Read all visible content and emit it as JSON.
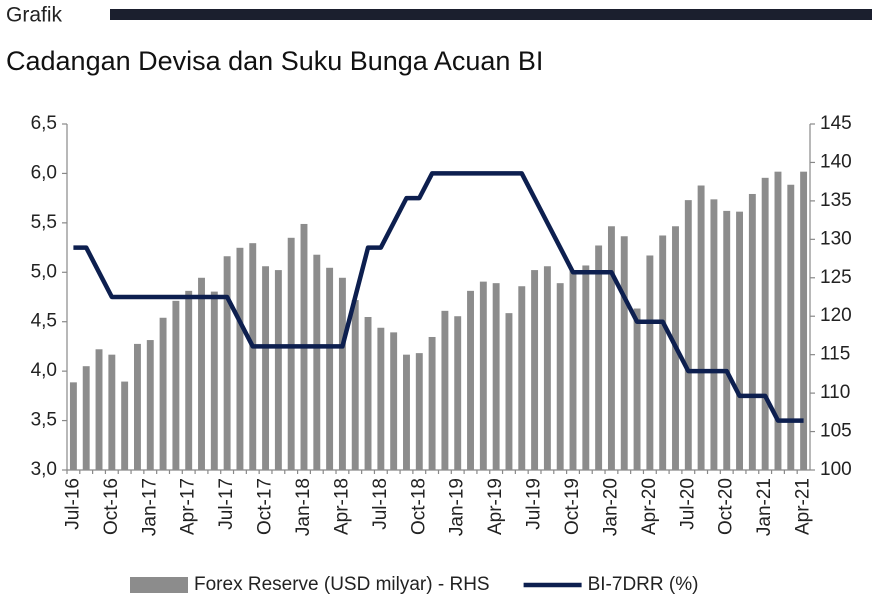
{
  "header": {
    "label": "Grafik"
  },
  "chart_data": {
    "type": "combo",
    "title": "Cadangan Devisa dan Suku Bunga Acuan BI",
    "categories": [
      "Jul-16",
      null,
      null,
      "Oct-16",
      null,
      null,
      "Jan-17",
      null,
      null,
      "Apr-17",
      null,
      null,
      "Jul-17",
      null,
      null,
      "Oct-17",
      null,
      null,
      "Jan-18",
      null,
      null,
      "Apr-18",
      null,
      null,
      "Jul-18",
      null,
      null,
      "Oct-18",
      null,
      null,
      "Jan-19",
      null,
      null,
      "Apr-19",
      null,
      null,
      "Jul-19",
      null,
      null,
      "Oct-19",
      null,
      null,
      "Jan-20",
      null,
      null,
      "Apr-20",
      null,
      null,
      "Jul-20",
      null,
      null,
      "Oct-20",
      null,
      null,
      "Jan-21",
      null,
      null,
      "Apr-21"
    ],
    "series": [
      {
        "name": "Forex Reserve (USD milyar) - RHS",
        "type": "bar",
        "axis": "y2",
        "color": "#8c8c8c",
        "values": [
          111.4,
          113.5,
          115.7,
          115.0,
          111.5,
          116.4,
          116.9,
          119.8,
          122.0,
          123.3,
          125.0,
          123.2,
          127.8,
          128.9,
          129.5,
          126.5,
          126.0,
          130.2,
          132.0,
          128.0,
          126.3,
          125.0,
          122.1,
          119.9,
          118.5,
          117.9,
          115.0,
          115.2,
          117.3,
          120.7,
          120.0,
          123.3,
          124.5,
          124.3,
          120.4,
          123.9,
          126.0,
          126.5,
          124.3,
          126.0,
          126.6,
          129.2,
          131.7,
          130.4,
          121.0,
          127.9,
          130.5,
          131.7,
          135.1,
          137.0,
          135.2,
          133.7,
          133.6,
          135.9,
          138.0,
          138.8,
          137.1,
          138.8
        ]
      },
      {
        "name": "BI-7DRR (%)",
        "type": "line",
        "axis": "y",
        "color": "#0d1f4f",
        "values": [
          5.25,
          5.25,
          5.0,
          4.75,
          4.75,
          4.75,
          4.75,
          4.75,
          4.75,
          4.75,
          4.75,
          4.75,
          4.75,
          4.5,
          4.25,
          4.25,
          4.25,
          4.25,
          4.25,
          4.25,
          4.25,
          4.25,
          4.75,
          5.25,
          5.25,
          5.5,
          5.75,
          5.75,
          6.0,
          6.0,
          6.0,
          6.0,
          6.0,
          6.0,
          6.0,
          6.0,
          5.75,
          5.5,
          5.25,
          5.0,
          5.0,
          5.0,
          5.0,
          4.75,
          4.5,
          4.5,
          4.5,
          4.25,
          4.0,
          4.0,
          4.0,
          4.0,
          3.75,
          3.75,
          3.75,
          3.5,
          3.5,
          3.5
        ]
      }
    ],
    "ylim": [
      3.0,
      6.5
    ],
    "yticks": [
      {
        "value": 3.0,
        "label": "3,0"
      },
      {
        "value": 3.5,
        "label": "3,5"
      },
      {
        "value": 4.0,
        "label": "4,0"
      },
      {
        "value": 4.5,
        "label": "4,5"
      },
      {
        "value": 5.0,
        "label": "5,0"
      },
      {
        "value": 5.5,
        "label": "5,5"
      },
      {
        "value": 6.0,
        "label": "6,0"
      },
      {
        "value": 6.5,
        "label": "6,5"
      }
    ],
    "y2lim": [
      100,
      145
    ],
    "y2ticks": [
      100,
      105,
      110,
      115,
      120,
      125,
      130,
      135,
      140,
      145
    ],
    "legend": "bottom"
  }
}
